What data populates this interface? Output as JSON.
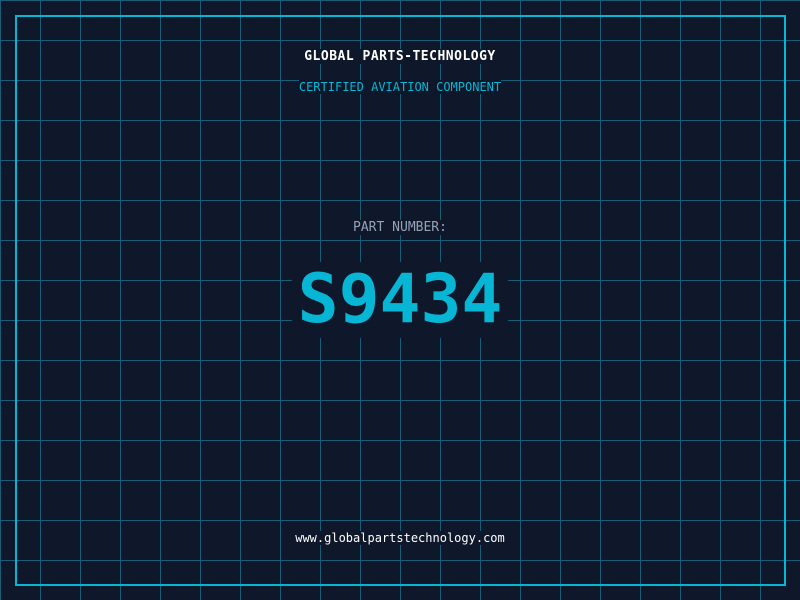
{
  "header": {
    "title": "GLOBAL PARTS-TECHNOLOGY",
    "subtitle": "CERTIFIED AVIATION COMPONENT"
  },
  "part": {
    "label": "PART NUMBER:",
    "number": "S9434"
  },
  "footer": {
    "url": "www.globalpartstechnology.com"
  },
  "colors": {
    "background": "#0f172a",
    "accent": "#06b6d4",
    "grid": "#155e75"
  }
}
